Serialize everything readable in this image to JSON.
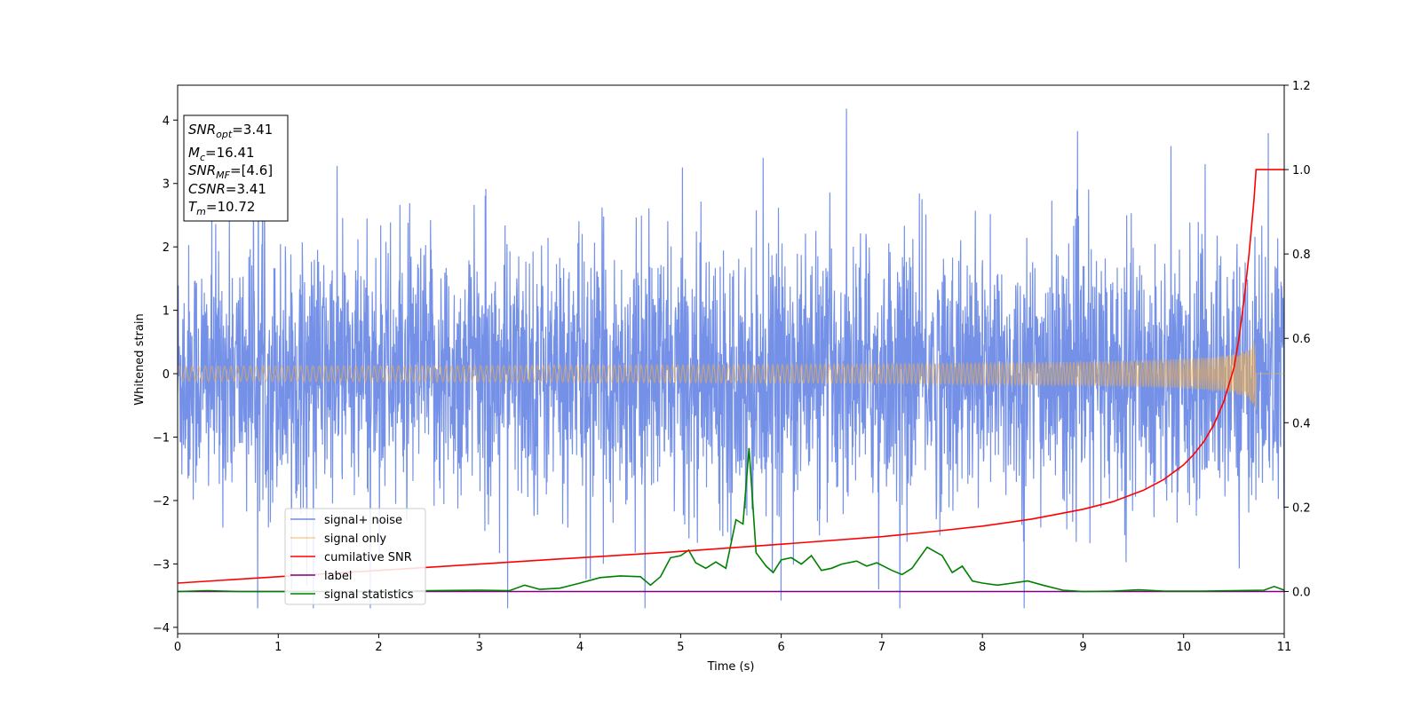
{
  "chart_data": {
    "type": "line",
    "title": "",
    "xlabel": "Time (s)",
    "ylabel": "Whitened strain",
    "xlim": [
      0,
      11
    ],
    "ylim": [
      -4.1,
      4.55
    ],
    "y2lim": [
      -0.1,
      1.2
    ],
    "x_ticks": [
      "0",
      "1",
      "2",
      "3",
      "4",
      "5",
      "6",
      "7",
      "8",
      "9",
      "10",
      "11"
    ],
    "y_ticks": [
      "4",
      "3",
      "2",
      "1",
      "0",
      "−1",
      "−2",
      "−3",
      "−4"
    ],
    "y2_ticks": [
      "1.2",
      "1.0",
      "0.8",
      "0.6",
      "0.4",
      "0.2",
      "0.0"
    ],
    "grid": false,
    "legend_position": "lower-left",
    "series": [
      {
        "name": "signal+ noise",
        "color": "#6e8be6",
        "axis": "left",
        "description_values": "noise samples roughly within [-3.7, 4.2]"
      },
      {
        "name": "signal only",
        "color": "#f5b041",
        "axis": "left",
        "chirp_end_time": 10.72,
        "max_amplitude": 0.57
      },
      {
        "name": "cumilative SNR",
        "color": "#ff0000",
        "axis": "right",
        "x": [
          0,
          1,
          2,
          3,
          4,
          5,
          6,
          7,
          7.5,
          8,
          8.5,
          9,
          9.3,
          9.6,
          9.8,
          10.0,
          10.1,
          10.2,
          10.3,
          10.4,
          10.5,
          10.55,
          10.6,
          10.65,
          10.7,
          10.72,
          11
        ],
        "y": [
          0.02,
          0.035,
          0.05,
          0.065,
          0.08,
          0.095,
          0.112,
          0.13,
          0.142,
          0.155,
          0.172,
          0.195,
          0.213,
          0.24,
          0.265,
          0.3,
          0.325,
          0.355,
          0.395,
          0.45,
          0.53,
          0.6,
          0.69,
          0.8,
          0.93,
          1.0,
          1.0
        ]
      },
      {
        "name": "label",
        "color": "#800080",
        "axis": "right",
        "x": [
          0,
          11
        ],
        "y": [
          0,
          0
        ]
      },
      {
        "name": "signal statistics",
        "color": "#008000",
        "axis": "right",
        "x": [
          0,
          0.3,
          0.6,
          1.0,
          1.5,
          2.0,
          2.5,
          3.0,
          3.3,
          3.45,
          3.6,
          3.8,
          4.0,
          4.2,
          4.4,
          4.6,
          4.7,
          4.8,
          4.9,
          5.0,
          5.08,
          5.15,
          5.25,
          5.35,
          5.45,
          5.55,
          5.62,
          5.68,
          5.75,
          5.85,
          5.92,
          6.0,
          6.1,
          6.2,
          6.3,
          6.4,
          6.5,
          6.6,
          6.75,
          6.85,
          6.95,
          7.1,
          7.2,
          7.3,
          7.45,
          7.6,
          7.7,
          7.8,
          7.9,
          8.0,
          8.15,
          8.3,
          8.45,
          8.6,
          8.8,
          9.0,
          9.3,
          9.55,
          9.8,
          10.2,
          10.5,
          10.8,
          10.9,
          11.0
        ],
        "y": [
          0.0,
          0.002,
          0.0,
          0.0,
          0.0,
          0.0,
          0.002,
          0.003,
          0.002,
          0.015,
          0.005,
          0.008,
          0.02,
          0.033,
          0.037,
          0.035,
          0.015,
          0.035,
          0.08,
          0.085,
          0.098,
          0.068,
          0.055,
          0.07,
          0.055,
          0.17,
          0.16,
          0.34,
          0.092,
          0.06,
          0.045,
          0.075,
          0.08,
          0.065,
          0.085,
          0.05,
          0.055,
          0.065,
          0.072,
          0.06,
          0.068,
          0.05,
          0.04,
          0.055,
          0.105,
          0.085,
          0.045,
          0.06,
          0.025,
          0.02,
          0.015,
          0.02,
          0.025,
          0.015,
          0.003,
          0.0,
          0.001,
          0.004,
          0.001,
          0.001,
          0.002,
          0.003,
          0.012,
          0.003
        ]
      }
    ],
    "annotation_box": {
      "line1_main": "SNR",
      "line1_sub": "opt",
      "line1_value": "=3.41",
      "line2_main": "M",
      "line2_sub": "c",
      "line2_value": "=16.41",
      "line3_main": "SNR",
      "line3_sub": "MF",
      "line3_value": "=[4.6]",
      "line4_main": "CSNR",
      "line4_value": "=3.41",
      "line5_main": "T",
      "line5_sub": "m",
      "line5_value": "=10.72"
    }
  }
}
